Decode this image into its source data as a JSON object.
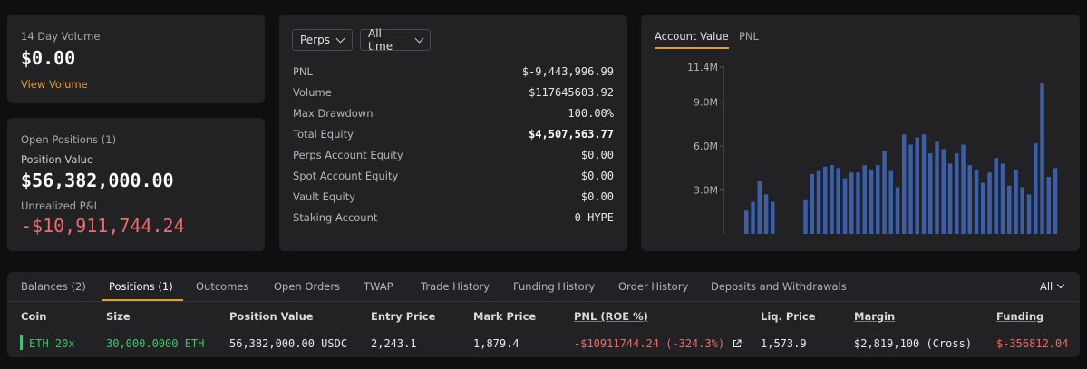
{
  "summary": {
    "volume_label": "14 Day Volume",
    "volume_value": "$0.00",
    "view_volume": "View Volume"
  },
  "positions_card": {
    "title": "Open Positions (1)",
    "position_value_label": "Position Value",
    "position_value": "$56,382,000.00",
    "unrealized_label": "Unrealized P&L",
    "unrealized_value": "-$10,911,744.24"
  },
  "stats": {
    "market_select": "Perps",
    "range_select": "All-time",
    "rows": [
      {
        "label": "PNL",
        "value": "$-9,443,996.99"
      },
      {
        "label": "Volume",
        "value": "$117645603.92"
      },
      {
        "label": "Max Drawdown",
        "value": "100.00%"
      },
      {
        "label": "Total Equity",
        "value": "$4,507,563.77"
      },
      {
        "label": "Perps Account Equity",
        "value": "$0.00"
      },
      {
        "label": "Spot Account Equity",
        "value": "$0.00"
      },
      {
        "label": "Vault Equity",
        "value": "$0.00"
      },
      {
        "label": "Staking Account",
        "value": "0 HYPE"
      }
    ]
  },
  "chart_tabs": {
    "account_value": "Account Value",
    "pnl": "PNL"
  },
  "chart_data": {
    "type": "bar",
    "title": "",
    "xlabel": "",
    "ylabel": "",
    "ylim": [
      0,
      11.4
    ],
    "y_ticks": [
      {
        "value": 3.0,
        "label": "3.0M"
      },
      {
        "value": 6.0,
        "label": "6.0M"
      },
      {
        "value": 9.0,
        "label": "9.0M"
      },
      {
        "value": 11.4,
        "label": "11.4M"
      }
    ],
    "values": [
      1.6,
      2.2,
      3.6,
      2.7,
      2.2,
      null,
      null,
      null,
      null,
      2.3,
      4.1,
      4.3,
      4.6,
      4.7,
      4.5,
      3.8,
      4.2,
      4.2,
      4.7,
      4.4,
      4.7,
      5.7,
      4.3,
      3.2,
      6.8,
      6.1,
      6.6,
      6.8,
      5.5,
      6.3,
      5.8,
      4.8,
      5.5,
      6.1,
      4.7,
      4.4,
      3.5,
      4.2,
      5.2,
      4.8,
      3.3,
      4.4,
      3.2,
      2.7,
      6.2,
      10.3,
      3.9,
      4.5
    ],
    "color": "#3a5fa8",
    "grid": false
  },
  "bottom": {
    "tabs": [
      {
        "label": "Balances (2)",
        "active": false
      },
      {
        "label": "Positions (1)",
        "active": true
      },
      {
        "label": "Outcomes",
        "active": false
      },
      {
        "label": "Open Orders",
        "active": false
      },
      {
        "label": "TWAP",
        "active": false
      },
      {
        "label": "Trade History",
        "active": false
      },
      {
        "label": "Funding History",
        "active": false
      },
      {
        "label": "Order History",
        "active": false
      },
      {
        "label": "Deposits and Withdrawals",
        "active": false
      }
    ],
    "filter": "All",
    "columns": [
      "Coin",
      "Size",
      "Position Value",
      "Entry Price",
      "Mark Price",
      "PNL (ROE %)",
      "Liq. Price",
      "Margin",
      "Funding"
    ],
    "row": {
      "coin": "ETH",
      "leverage": "20x",
      "size": "30,000.0000 ETH",
      "position_value": "56,382,000.00 USDC",
      "entry_price": "2,243.1",
      "mark_price": "1,879.4",
      "pnl": "-$10911744.24 (-324.3%)",
      "liq_price": "1,573.9",
      "margin": "$2,819,100 (Cross)",
      "funding": "$-356812.04"
    }
  },
  "colors": {
    "accent": "#e0a02b",
    "negative": "#ef6b6b",
    "positive": "#3ec46d",
    "bar": "#3a5fa8"
  }
}
